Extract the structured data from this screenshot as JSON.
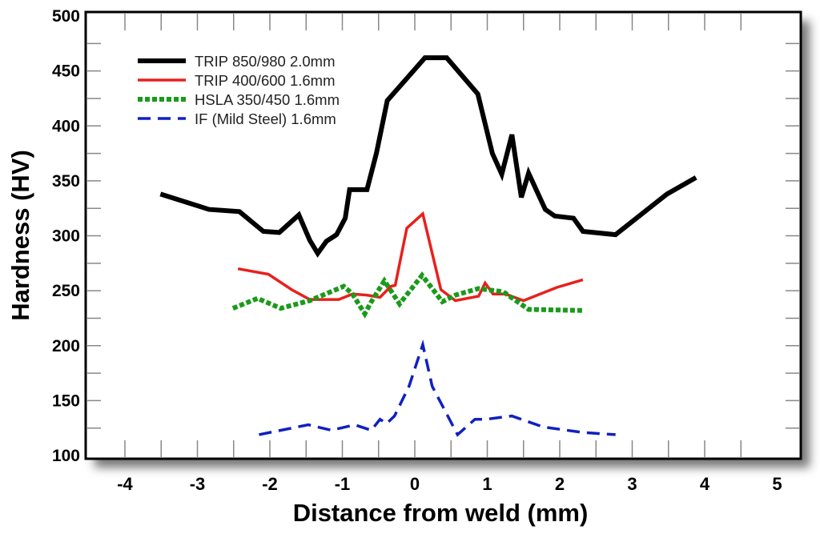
{
  "chart_data": {
    "type": "line",
    "title": "",
    "xlabel": "Distance from weld (mm)",
    "ylabel": "Hardness (HV)",
    "xlim": [
      -4.5,
      5.3
    ],
    "ylim": [
      100,
      500
    ],
    "xticks": [
      -4,
      -3,
      -2,
      -1,
      0,
      1,
      2,
      3,
      4,
      5
    ],
    "yticks": [
      100,
      150,
      200,
      250,
      300,
      350,
      400,
      450,
      500
    ],
    "grid": false,
    "legend_position": "top-left",
    "series": [
      {
        "name": "TRIP 850/980  2.0mm",
        "color": "#000000",
        "style": "solid-thick",
        "x": [
          -3.51,
          -2.84,
          -2.42,
          -2.09,
          -1.87,
          -1.6,
          -1.45,
          -1.34,
          -1.22,
          -1.08,
          -0.96,
          -0.9,
          -0.66,
          -0.53,
          -0.38,
          0.14,
          0.44,
          0.87,
          1.07,
          1.2,
          1.34,
          1.47,
          1.57,
          1.8,
          1.93,
          2.19,
          2.32,
          2.77,
          3.48,
          3.88
        ],
        "y": [
          338,
          324,
          322,
          304,
          303,
          319,
          296,
          284,
          295,
          301,
          316,
          342,
          342,
          375,
          423,
          462,
          462,
          429,
          375,
          356,
          392,
          335,
          357,
          324,
          318,
          316,
          304,
          301,
          338,
          353
        ]
      },
      {
        "name": "TRIP 400/600  1.6mm",
        "color": "#e8201c",
        "style": "solid",
        "x": [
          -2.44,
          -2.02,
          -1.7,
          -1.45,
          -1.05,
          -0.86,
          -0.66,
          -0.48,
          -0.33,
          -0.27,
          -0.11,
          0.11,
          0.36,
          0.56,
          0.88,
          0.97,
          1.08,
          1.25,
          1.5,
          1.96,
          2.32
        ],
        "y": [
          270,
          265,
          251,
          242,
          242,
          247,
          246,
          244,
          254,
          255,
          307,
          320,
          251,
          241,
          245,
          257,
          247,
          247,
          241,
          253,
          260
        ]
      },
      {
        "name": "HSLA 350/450 1.6mm",
        "color": "#1a9a1a",
        "style": "dotted",
        "x": [
          -2.51,
          -2.17,
          -1.85,
          -1.45,
          -0.98,
          -0.86,
          -0.69,
          -0.6,
          -0.42,
          -0.21,
          0.1,
          0.38,
          0.56,
          0.88,
          1.22,
          1.57,
          2.32
        ],
        "y": [
          234,
          243,
          234,
          241,
          254,
          247,
          229,
          240,
          259,
          238,
          264,
          240,
          246,
          252,
          249,
          233,
          232
        ]
      },
      {
        "name": "IF (Mild Steel) 1.6mm",
        "color": "#1020c0",
        "style": "dashed",
        "x": [
          -2.15,
          -1.47,
          -1.15,
          -0.83,
          -0.6,
          -0.48,
          -0.39,
          -0.28,
          -0.08,
          0.11,
          0.24,
          0.59,
          0.83,
          0.98,
          1.34,
          1.77,
          2.32,
          2.77
        ],
        "y": [
          119,
          128,
          123,
          128,
          123,
          133,
          129,
          136,
          163,
          201,
          163,
          119,
          133,
          133,
          136,
          126,
          121,
          119
        ]
      }
    ]
  }
}
